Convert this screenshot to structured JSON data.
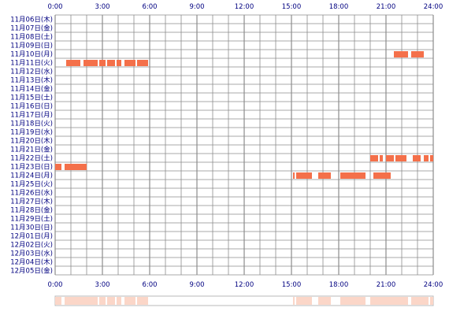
{
  "chart_data": {
    "type": "heatmap",
    "x_unit": "hour",
    "xlim": [
      0,
      24
    ],
    "x_ticks": [
      {
        "hour": 0,
        "label": "0:00"
      },
      {
        "hour": 3,
        "label": "3:00"
      },
      {
        "hour": 6,
        "label": "6:00"
      },
      {
        "hour": 9,
        "label": "9:00"
      },
      {
        "hour": 12,
        "label": "12:00"
      },
      {
        "hour": 15,
        "label": "15:00"
      },
      {
        "hour": 18,
        "label": "18:00"
      },
      {
        "hour": 21,
        "label": "21:00"
      },
      {
        "hour": 24,
        "label": "24:00"
      }
    ],
    "rows": [
      "11月06日(木)",
      "11月07日(金)",
      "11月08日(土)",
      "11月09日(日)",
      "11月10日(月)",
      "11月11日(火)",
      "11月12日(水)",
      "11月13日(木)",
      "11月14日(金)",
      "11月15日(土)",
      "11月16日(日)",
      "11月17日(月)",
      "11月18日(火)",
      "11月19日(水)",
      "11月20日(木)",
      "11月21日(金)",
      "11月22日(土)",
      "11月23日(日)",
      "11月24日(月)",
      "11月25日(火)",
      "11月26日(水)",
      "11月27日(木)",
      "11月28日(金)",
      "11月29日(土)",
      "11月30日(日)",
      "12月01日(月)",
      "12月02日(火)",
      "12月03日(水)",
      "12月04日(木)",
      "12月05日(金)"
    ],
    "segments": [
      {
        "row": 4,
        "start": 21.5,
        "end": 22.4
      },
      {
        "row": 4,
        "start": 22.6,
        "end": 23.4
      },
      {
        "row": 5,
        "start": 0.7,
        "end": 1.6
      },
      {
        "row": 5,
        "start": 1.8,
        "end": 2.7
      },
      {
        "row": 5,
        "start": 2.8,
        "end": 3.2
      },
      {
        "row": 5,
        "start": 3.3,
        "end": 3.8
      },
      {
        "row": 5,
        "start": 3.9,
        "end": 4.2
      },
      {
        "row": 5,
        "start": 4.4,
        "end": 5.1
      },
      {
        "row": 5,
        "start": 5.2,
        "end": 5.9
      },
      {
        "row": 16,
        "start": 20.0,
        "end": 20.5
      },
      {
        "row": 16,
        "start": 20.6,
        "end": 20.8
      },
      {
        "row": 16,
        "start": 21.0,
        "end": 21.5
      },
      {
        "row": 16,
        "start": 21.6,
        "end": 22.3
      },
      {
        "row": 16,
        "start": 22.7,
        "end": 23.2
      },
      {
        "row": 16,
        "start": 23.4,
        "end": 23.7
      },
      {
        "row": 16,
        "start": 23.8,
        "end": 24.0
      },
      {
        "row": 17,
        "start": 0.0,
        "end": 0.4
      },
      {
        "row": 17,
        "start": 0.6,
        "end": 2.0
      },
      {
        "row": 18,
        "start": 15.1,
        "end": 15.2
      },
      {
        "row": 18,
        "start": 15.3,
        "end": 16.3
      },
      {
        "row": 18,
        "start": 16.7,
        "end": 17.5
      },
      {
        "row": 18,
        "start": 18.1,
        "end": 19.7
      },
      {
        "row": 18,
        "start": 20.2,
        "end": 21.3
      }
    ],
    "colors": {
      "bar": "#f4704a",
      "summary_bar": "#fbd6c8",
      "grid": "#8c8c8c",
      "label": "#000080"
    }
  }
}
